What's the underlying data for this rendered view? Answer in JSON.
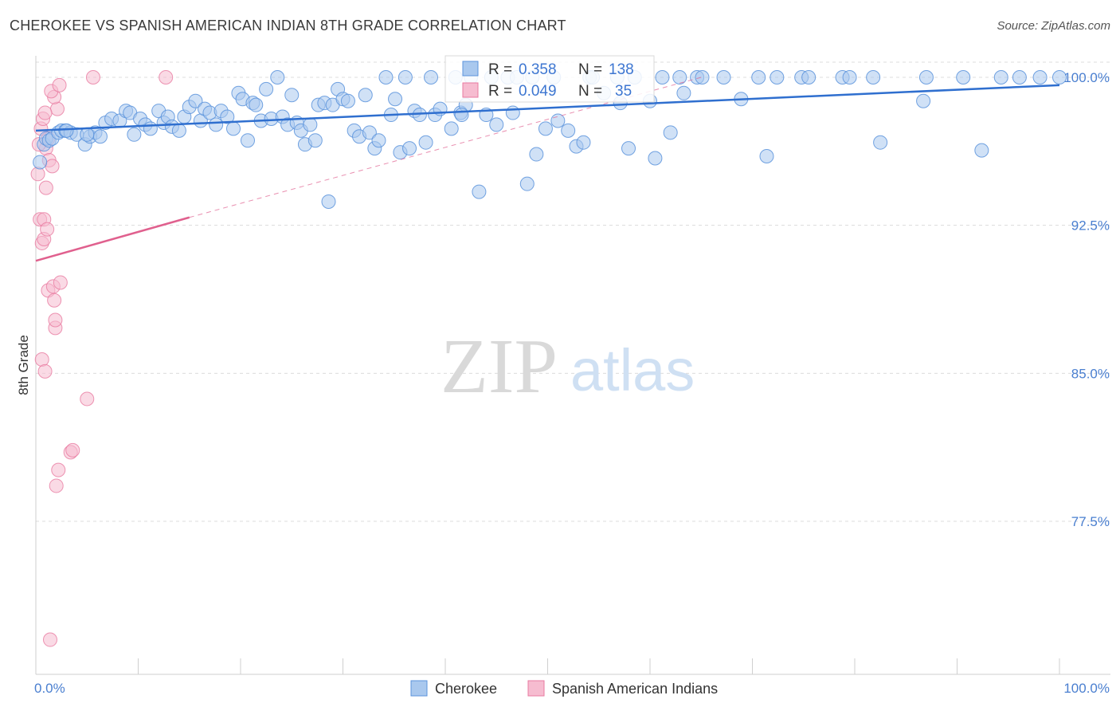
{
  "title": "CHEROKEE VS SPANISH AMERICAN INDIAN 8TH GRADE CORRELATION CHART",
  "source": "Source: ZipAtlas.com",
  "watermark": {
    "zip": "ZIP",
    "atlas": "atlas"
  },
  "colors": {
    "blue_fill": "#a9c8ee",
    "blue_stroke": "#5b93dc",
    "blue_line": "#2f6fcf",
    "pink_fill": "#f6bcd0",
    "pink_stroke": "#e87aa0",
    "pink_line": "#e0608e",
    "grid": "#dcdcdc",
    "axis_text": "#4a7fd0"
  },
  "stats": [
    {
      "series": "Cherokee",
      "r_label": "R =",
      "r_value": "0.358",
      "n_label": "N =",
      "n_value": "138"
    },
    {
      "series": "Spanish American Indians",
      "r_label": "R =",
      "r_value": "0.049",
      "n_label": "N =",
      "n_value": "35"
    }
  ],
  "chart_data": {
    "type": "scatter",
    "title": "CHEROKEE VS SPANISH AMERICAN INDIAN 8TH GRADE CORRELATION CHART",
    "xlabel": "",
    "ylabel": "8th Grade",
    "xlim": [
      0,
      100
    ],
    "ylim": [
      70.5,
      101
    ],
    "x_tick_labels": [
      "0.0%",
      "100.0%"
    ],
    "y_ticks": [
      77.5,
      85.0,
      92.5,
      100.0
    ],
    "y_tick_labels": [
      "77.5%",
      "85.0%",
      "92.5%",
      "100.0%"
    ],
    "grid": true,
    "legend": [
      "Cherokee",
      "Spanish American Indians"
    ],
    "series": [
      {
        "name": "Cherokee",
        "trend": {
          "x": [
            0,
            100
          ],
          "y": [
            97.3,
            99.6
          ],
          "style": "solid"
        },
        "points": [
          [
            0.4,
            95.7
          ],
          [
            0.8,
            96.6
          ],
          [
            1.0,
            96.9
          ],
          [
            1.3,
            96.8
          ],
          [
            1.6,
            96.9
          ],
          [
            2.2,
            97.2
          ],
          [
            2.5,
            97.3
          ],
          [
            2.9,
            97.3
          ],
          [
            3.4,
            97.2
          ],
          [
            4.0,
            97.1
          ],
          [
            4.8,
            96.6
          ],
          [
            5.3,
            97.0
          ],
          [
            5.8,
            97.2
          ],
          [
            6.3,
            97.0
          ],
          [
            6.8,
            97.7
          ],
          [
            7.4,
            97.9
          ],
          [
            8.2,
            97.8
          ],
          [
            8.8,
            98.3
          ],
          [
            9.2,
            98.2
          ],
          [
            9.6,
            97.1
          ],
          [
            10.2,
            97.9
          ],
          [
            10.7,
            97.6
          ],
          [
            11.2,
            97.4
          ],
          [
            12.0,
            98.3
          ],
          [
            12.5,
            97.7
          ],
          [
            12.9,
            98.0
          ],
          [
            13.3,
            97.5
          ],
          [
            14.0,
            97.3
          ],
          [
            14.5,
            98.0
          ],
          [
            15.0,
            98.5
          ],
          [
            15.6,
            98.8
          ],
          [
            16.1,
            97.8
          ],
          [
            16.5,
            98.4
          ],
          [
            17.0,
            98.2
          ],
          [
            17.6,
            97.6
          ],
          [
            18.1,
            98.3
          ],
          [
            18.7,
            98.0
          ],
          [
            19.3,
            97.4
          ],
          [
            19.8,
            99.2
          ],
          [
            20.2,
            98.9
          ],
          [
            20.7,
            96.8
          ],
          [
            21.2,
            98.7
          ],
          [
            21.5,
            98.6
          ],
          [
            22.0,
            97.8
          ],
          [
            22.5,
            99.4
          ],
          [
            23.0,
            97.9
          ],
          [
            23.6,
            100.0
          ],
          [
            24.1,
            98.0
          ],
          [
            24.6,
            97.6
          ],
          [
            25.0,
            99.1
          ],
          [
            25.5,
            97.7
          ],
          [
            25.9,
            97.3
          ],
          [
            26.3,
            96.6
          ],
          [
            26.8,
            97.6
          ],
          [
            27.3,
            96.8
          ],
          [
            27.6,
            98.6
          ],
          [
            28.2,
            98.7
          ],
          [
            28.6,
            93.7
          ],
          [
            29.0,
            98.6
          ],
          [
            29.5,
            99.4
          ],
          [
            30.0,
            98.9
          ],
          [
            30.5,
            98.8
          ],
          [
            31.1,
            97.3
          ],
          [
            31.6,
            97.0
          ],
          [
            32.2,
            99.1
          ],
          [
            32.6,
            97.2
          ],
          [
            33.1,
            96.4
          ],
          [
            33.5,
            96.8
          ],
          [
            34.2,
            100.0
          ],
          [
            34.7,
            98.1
          ],
          [
            35.1,
            98.9
          ],
          [
            35.6,
            96.2
          ],
          [
            36.1,
            100.0
          ],
          [
            36.5,
            96.4
          ],
          [
            37.0,
            98.3
          ],
          [
            37.5,
            98.1
          ],
          [
            38.1,
            96.7
          ],
          [
            38.6,
            100.0
          ],
          [
            39.0,
            98.1
          ],
          [
            39.5,
            98.4
          ],
          [
            40.6,
            97.4
          ],
          [
            41.0,
            100.0
          ],
          [
            41.5,
            98.2
          ],
          [
            42.0,
            98.6
          ],
          [
            42.5,
            100.0
          ],
          [
            43.3,
            94.2
          ],
          [
            44.0,
            98.1
          ],
          [
            44.5,
            100.0
          ],
          [
            45.0,
            97.6
          ],
          [
            46.1,
            100.0
          ],
          [
            46.6,
            98.2
          ],
          [
            47.0,
            100.0
          ],
          [
            48.0,
            94.6
          ],
          [
            48.5,
            100.0
          ],
          [
            48.9,
            96.1
          ],
          [
            49.8,
            97.4
          ],
          [
            50.6,
            100.0
          ],
          [
            51.0,
            97.8
          ],
          [
            52.0,
            97.3
          ],
          [
            52.8,
            96.5
          ],
          [
            53.5,
            96.7
          ],
          [
            54.1,
            100.0
          ],
          [
            54.4,
            100.0
          ],
          [
            55.5,
            99.2
          ],
          [
            57.1,
            98.7
          ],
          [
            57.9,
            96.4
          ],
          [
            58.5,
            100.0
          ],
          [
            60.0,
            98.8
          ],
          [
            60.5,
            95.9
          ],
          [
            61.2,
            100.0
          ],
          [
            62.0,
            97.2
          ],
          [
            62.9,
            100.0
          ],
          [
            63.3,
            99.2
          ],
          [
            64.6,
            100.0
          ],
          [
            65.1,
            100.0
          ],
          [
            67.2,
            100.0
          ],
          [
            68.9,
            98.9
          ],
          [
            70.6,
            100.0
          ],
          [
            71.4,
            96.0
          ],
          [
            72.4,
            100.0
          ],
          [
            74.8,
            100.0
          ],
          [
            75.5,
            100.0
          ],
          [
            78.8,
            100.0
          ],
          [
            79.5,
            100.0
          ],
          [
            81.8,
            100.0
          ],
          [
            82.5,
            96.7
          ],
          [
            86.7,
            98.8
          ],
          [
            87.0,
            100.0
          ],
          [
            90.6,
            100.0
          ],
          [
            92.4,
            96.3
          ],
          [
            94.3,
            100.0
          ],
          [
            96.1,
            100.0
          ],
          [
            98.1,
            100.0
          ],
          [
            100.0,
            100.0
          ],
          [
            3.0,
            97.3
          ],
          [
            5.0,
            97.1
          ],
          [
            41.6,
            98.1
          ],
          [
            56.8,
            100.0
          ]
        ]
      },
      {
        "name": "Spanish American Indians",
        "trend": {
          "x": [
            0,
            15
          ],
          "y": [
            90.7,
            92.9
          ],
          "style": "solid",
          "extended": {
            "x": [
              15,
              65
            ],
            "y": [
              92.9,
              100.0
            ],
            "style": "dashed"
          }
        },
        "points": [
          [
            0.4,
            92.8
          ],
          [
            0.6,
            91.6
          ],
          [
            0.6,
            85.7
          ],
          [
            0.8,
            92.8
          ],
          [
            0.8,
            91.8
          ],
          [
            0.9,
            85.1
          ],
          [
            1.0,
            96.4
          ],
          [
            1.0,
            94.4
          ],
          [
            1.1,
            92.3
          ],
          [
            1.2,
            89.2
          ],
          [
            1.3,
            95.8
          ],
          [
            1.4,
            71.5
          ],
          [
            1.6,
            95.5
          ],
          [
            1.7,
            89.4
          ],
          [
            1.8,
            88.7
          ],
          [
            1.9,
            87.3
          ],
          [
            1.9,
            87.7
          ],
          [
            2.0,
            79.3
          ],
          [
            2.2,
            80.1
          ],
          [
            2.4,
            89.6
          ],
          [
            2.1,
            98.4
          ],
          [
            1.8,
            99.0
          ],
          [
            1.5,
            99.3
          ],
          [
            2.3,
            99.6
          ],
          [
            5.6,
            100.0
          ],
          [
            12.7,
            100.0
          ],
          [
            3.4,
            81.0
          ],
          [
            3.6,
            81.1
          ],
          [
            5.0,
            83.7
          ],
          [
            0.2,
            95.1
          ],
          [
            0.3,
            96.6
          ],
          [
            0.5,
            97.4
          ],
          [
            0.7,
            97.9
          ],
          [
            0.9,
            98.2
          ],
          [
            1.2,
            96.9
          ]
        ]
      }
    ]
  }
}
